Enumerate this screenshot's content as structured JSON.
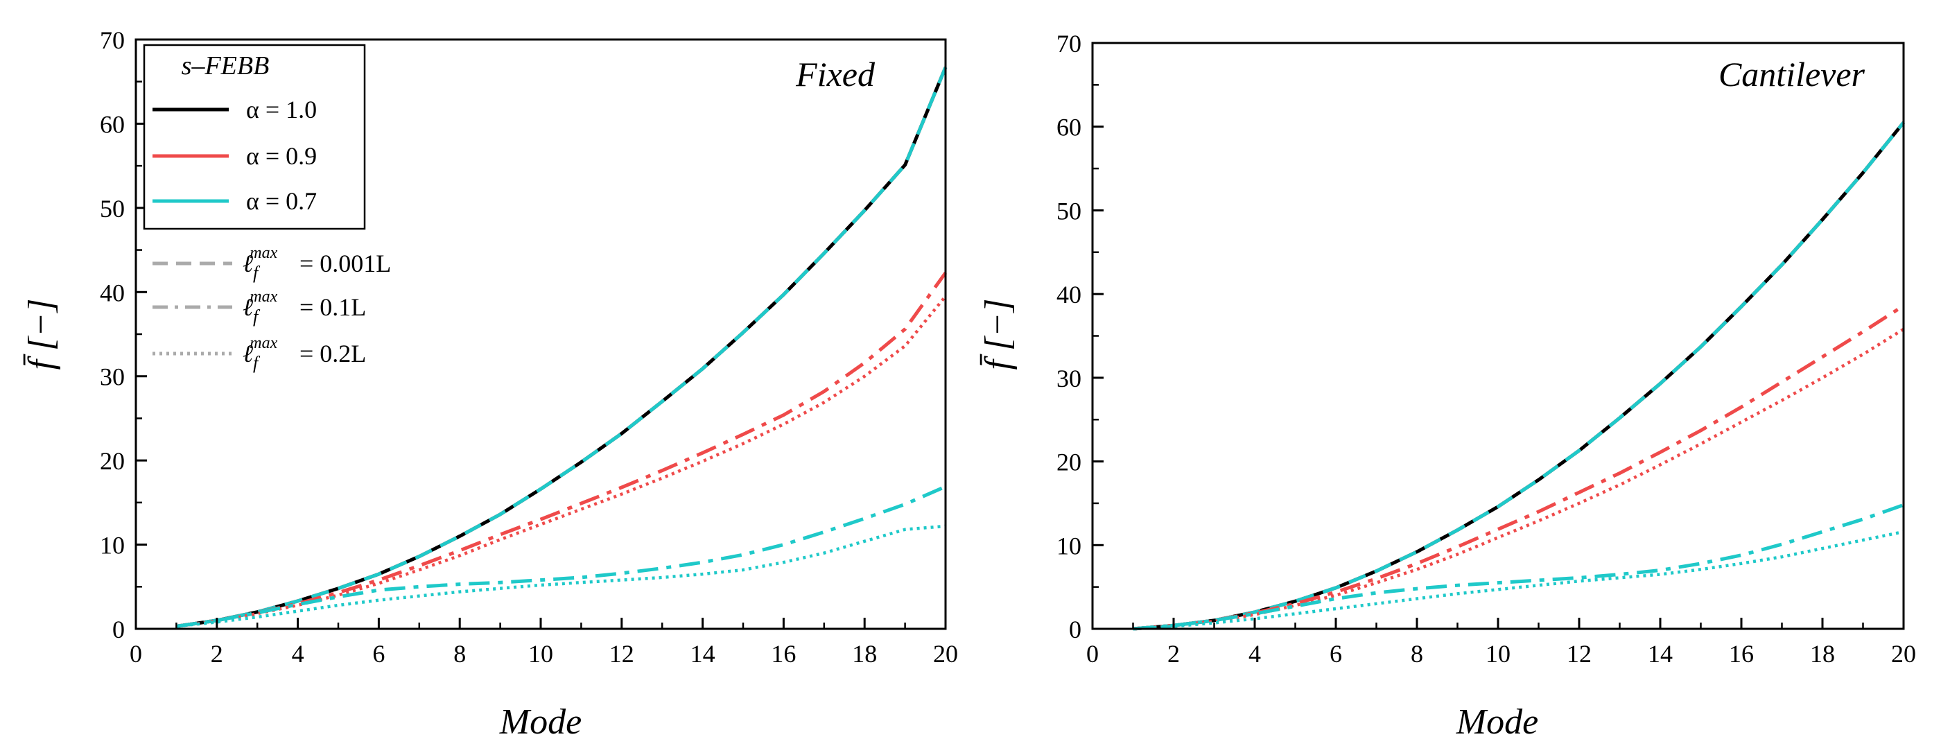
{
  "chart_data": [
    {
      "type": "line",
      "panel": "left",
      "annotation": "Fixed",
      "xlabel": "Mode",
      "ylabel": "f̄ [−]",
      "xlim": [
        0,
        20
      ],
      "ylim": [
        0,
        70
      ],
      "x_ticks": [
        "0",
        "2",
        "4",
        "6",
        "8",
        "10",
        "12",
        "14",
        "16",
        "18",
        "20"
      ],
      "y_ticks": [
        "0",
        "10",
        "20",
        "30",
        "40",
        "50",
        "60",
        "70"
      ],
      "grid": false,
      "x": [
        1,
        2,
        3,
        4,
        5,
        6,
        7,
        8,
        9,
        10,
        11,
        12,
        13,
        14,
        15,
        16,
        17,
        18,
        19,
        20
      ],
      "series": [
        {
          "name": "α = 1.0, ℓ = 0.001L",
          "color": "#000000",
          "style": "solid",
          "values": [
            0.3,
            1.0,
            2.0,
            3.3,
            4.8,
            6.5,
            8.6,
            11.0,
            13.6,
            16.6,
            19.8,
            23.2,
            27.0,
            30.9,
            35.2,
            39.7,
            44.6,
            49.7,
            55.1,
            66.7
          ]
        },
        {
          "name": "α = 0.9, ℓ = 0.001L",
          "color": "#ef4a4a",
          "style": "dashed",
          "values": [
            0.3,
            1.0,
            2.0,
            3.3,
            4.8,
            6.5,
            8.6,
            11.0,
            13.6,
            16.6,
            19.8,
            23.2,
            27.0,
            30.9,
            35.2,
            39.7,
            44.6,
            49.7,
            55.1,
            66.7
          ]
        },
        {
          "name": "α = 0.7, ℓ = 0.001L",
          "color": "#1fc9c9",
          "style": "dashed",
          "values": [
            0.3,
            1.0,
            2.0,
            3.3,
            4.8,
            6.5,
            8.6,
            11.0,
            13.6,
            16.6,
            19.8,
            23.2,
            27.0,
            30.9,
            35.2,
            39.7,
            44.6,
            49.7,
            55.1,
            66.7
          ]
        },
        {
          "name": "α = 0.9, ℓ = 0.1L",
          "color": "#ef4a4a",
          "style": "dashdot",
          "values": [
            0.3,
            1.0,
            1.9,
            3.0,
            4.3,
            5.8,
            7.5,
            9.3,
            11.2,
            13.0,
            14.9,
            16.8,
            18.8,
            20.9,
            23.1,
            25.4,
            28.2,
            31.6,
            35.6,
            42.3
          ]
        },
        {
          "name": "α = 0.9, ℓ = 0.2L",
          "color": "#ef4a4a",
          "style": "dotted",
          "values": [
            0.3,
            0.9,
            1.8,
            2.8,
            4.0,
            5.4,
            7.0,
            8.7,
            10.6,
            12.4,
            14.2,
            16.0,
            17.9,
            19.9,
            22.0,
            24.3,
            26.9,
            30.0,
            33.6,
            39.5
          ]
        },
        {
          "name": "α = 0.7, ℓ = 0.1L",
          "color": "#1fc9c9",
          "style": "dashdot",
          "values": [
            0.3,
            1.0,
            1.9,
            2.9,
            3.8,
            4.6,
            5.0,
            5.3,
            5.5,
            5.8,
            6.1,
            6.6,
            7.2,
            7.9,
            8.8,
            10.0,
            11.5,
            13.1,
            14.8,
            16.9
          ]
        },
        {
          "name": "α = 0.7, ℓ = 0.2L",
          "color": "#1fc9c9",
          "style": "dotted",
          "values": [
            0.3,
            0.8,
            1.4,
            2.1,
            2.8,
            3.4,
            3.9,
            4.4,
            4.8,
            5.2,
            5.5,
            5.8,
            6.1,
            6.5,
            7.0,
            7.9,
            9.0,
            10.4,
            11.8,
            12.2
          ]
        }
      ],
      "legend": {
        "placement": "top-left",
        "title": "s–FEBB",
        "entries": [
          {
            "label": "α = 1.0",
            "color": "#000000",
            "style": "solid"
          },
          {
            "label": "α = 0.9",
            "color": "#ef4a4a",
            "style": "solid"
          },
          {
            "label": "α = 0.7",
            "color": "#1fc9c9",
            "style": "solid"
          }
        ],
        "style_entries": [
          {
            "label": "= 0.001L",
            "color": "#aaaaaa",
            "style": "dashed"
          },
          {
            "label": "= 0.1L",
            "color": "#aaaaaa",
            "style": "dashdot"
          },
          {
            "label": "= 0.2L",
            "color": "#aaaaaa",
            "style": "dotted"
          }
        ]
      }
    },
    {
      "type": "line",
      "panel": "right",
      "annotation": "Cantilever",
      "xlabel": "Mode",
      "ylabel": "f̄ [−]",
      "xlim": [
        0,
        20
      ],
      "ylim": [
        0,
        70
      ],
      "x_ticks": [
        "0",
        "2",
        "4",
        "6",
        "8",
        "10",
        "12",
        "14",
        "16",
        "18",
        "20"
      ],
      "y_ticks": [
        "0",
        "10",
        "20",
        "30",
        "40",
        "50",
        "60",
        "70"
      ],
      "grid": false,
      "x": [
        1,
        2,
        3,
        4,
        5,
        6,
        7,
        8,
        9,
        10,
        11,
        12,
        13,
        14,
        15,
        16,
        17,
        18,
        19,
        20
      ],
      "series": [
        {
          "name": "α = 1.0, ℓ = 0.001L",
          "color": "#000000",
          "style": "solid",
          "values": [
            0.0,
            0.4,
            1.0,
            2.0,
            3.3,
            4.9,
            6.9,
            9.2,
            11.8,
            14.6,
            17.8,
            21.3,
            25.2,
            29.3,
            33.7,
            38.5,
            43.5,
            48.9,
            54.5,
            60.5
          ]
        },
        {
          "name": "α = 0.9, ℓ = 0.001L",
          "color": "#ef4a4a",
          "style": "dashed",
          "values": [
            0.0,
            0.4,
            1.0,
            2.0,
            3.3,
            4.9,
            6.9,
            9.2,
            11.8,
            14.6,
            17.8,
            21.3,
            25.2,
            29.3,
            33.7,
            38.5,
            43.5,
            48.9,
            54.5,
            60.5
          ]
        },
        {
          "name": "α = 0.7, ℓ = 0.001L",
          "color": "#1fc9c9",
          "style": "dashed",
          "values": [
            0.0,
            0.4,
            1.0,
            2.0,
            3.3,
            4.9,
            6.9,
            9.2,
            11.8,
            14.6,
            17.8,
            21.3,
            25.2,
            29.3,
            33.7,
            38.5,
            43.5,
            48.9,
            54.5,
            60.5
          ]
        },
        {
          "name": "α = 0.9, ℓ = 0.1L",
          "color": "#ef4a4a",
          "style": "dashdot",
          "values": [
            0.0,
            0.4,
            1.0,
            1.9,
            3.0,
            4.4,
            6.0,
            7.8,
            9.8,
            11.9,
            14.0,
            16.3,
            18.6,
            21.1,
            23.7,
            26.5,
            29.5,
            32.5,
            35.5,
            38.6
          ]
        },
        {
          "name": "α = 0.9, ℓ = 0.2L",
          "color": "#ef4a4a",
          "style": "dotted",
          "values": [
            0.0,
            0.4,
            0.9,
            1.7,
            2.8,
            4.0,
            5.5,
            7.1,
            8.9,
            10.9,
            12.9,
            15.0,
            17.2,
            19.6,
            22.1,
            24.7,
            27.3,
            30.0,
            32.8,
            35.8
          ]
        },
        {
          "name": "α = 0.7, ℓ = 0.1L",
          "color": "#1fc9c9",
          "style": "dashdot",
          "values": [
            0.0,
            0.4,
            1.0,
            1.8,
            2.7,
            3.6,
            4.3,
            4.8,
            5.2,
            5.5,
            5.8,
            6.1,
            6.5,
            7.0,
            7.8,
            8.8,
            10.1,
            11.6,
            13.1,
            14.8
          ]
        },
        {
          "name": "α = 0.7, ℓ = 0.2L",
          "color": "#1fc9c9",
          "style": "dotted",
          "values": [
            0.0,
            0.3,
            0.7,
            1.2,
            1.8,
            2.4,
            3.0,
            3.6,
            4.2,
            4.7,
            5.2,
            5.7,
            6.1,
            6.5,
            7.1,
            7.8,
            8.6,
            9.6,
            10.6,
            11.6
          ]
        }
      ],
      "legend": null
    }
  ]
}
